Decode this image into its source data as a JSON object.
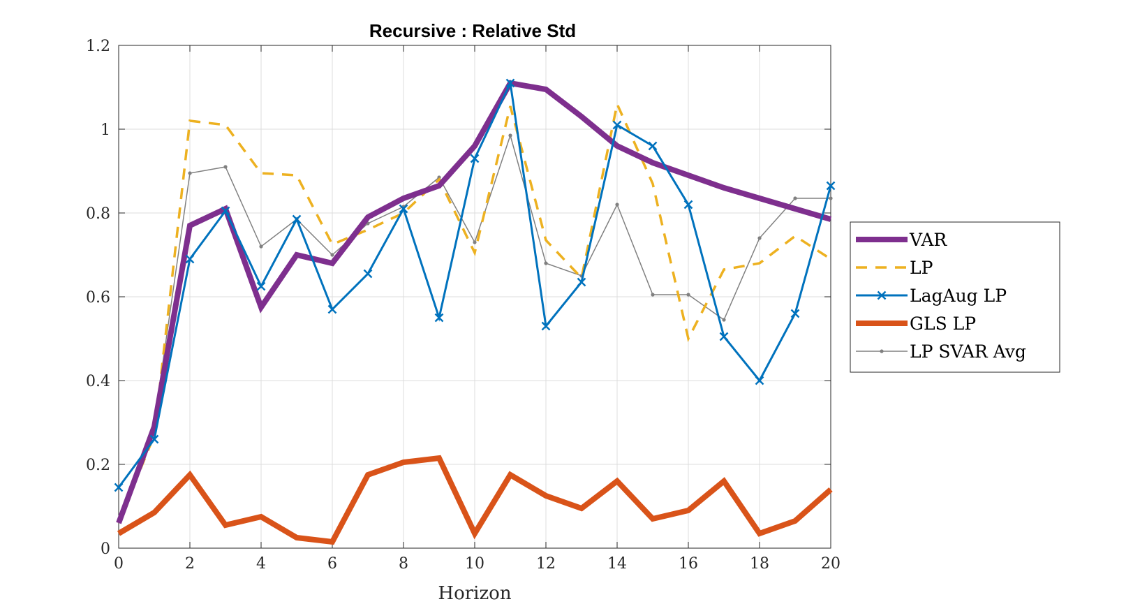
{
  "chart_data": {
    "type": "line",
    "title": "Recursive : Relative Std",
    "xlabel": "Horizon",
    "ylabel": "",
    "xlim": [
      0,
      20
    ],
    "ylim": [
      0,
      1.2
    ],
    "xticks": [
      0,
      2,
      4,
      6,
      8,
      10,
      12,
      14,
      16,
      18,
      20
    ],
    "yticks": [
      0,
      0.2,
      0.4,
      0.6,
      0.8,
      1,
      1.2
    ],
    "ytick_labels": [
      "0",
      "0.2",
      "0.4",
      "0.6",
      "0.8",
      "1",
      "1.2"
    ],
    "grid": true,
    "legend_position": "right-outside",
    "x": [
      0,
      1,
      2,
      3,
      4,
      5,
      6,
      7,
      8,
      9,
      10,
      11,
      12,
      13,
      14,
      15,
      16,
      17,
      18,
      19,
      20
    ],
    "series": [
      {
        "name": "VAR",
        "color": "#7E2F8E",
        "style": "solid-thick",
        "values": [
          0.06,
          0.29,
          0.77,
          0.81,
          0.575,
          0.7,
          0.68,
          0.79,
          0.835,
          0.865,
          0.96,
          1.11,
          1.095,
          1.03,
          0.96,
          0.92,
          0.89,
          0.86,
          0.835,
          0.81,
          0.785
        ]
      },
      {
        "name": "LP",
        "color": "#EDB120",
        "style": "dashed",
        "values": [
          0.06,
          0.27,
          1.02,
          1.01,
          0.895,
          0.89,
          0.725,
          0.76,
          0.8,
          0.88,
          0.705,
          1.055,
          0.735,
          0.645,
          1.06,
          0.87,
          0.5,
          0.665,
          0.68,
          0.745,
          0.69
        ]
      },
      {
        "name": "LagAug LP",
        "color": "#0072BD",
        "style": "solid-x",
        "values": [
          0.145,
          0.26,
          0.69,
          0.805,
          0.625,
          0.785,
          0.57,
          0.655,
          0.81,
          0.55,
          0.93,
          1.11,
          0.53,
          0.635,
          1.01,
          0.96,
          0.82,
          0.505,
          0.4,
          0.56,
          0.865
        ]
      },
      {
        "name": "GLS LP",
        "color": "#D95319",
        "style": "solid-thick",
        "values": [
          0.035,
          0.085,
          0.175,
          0.055,
          0.075,
          0.025,
          0.015,
          0.175,
          0.205,
          0.215,
          0.035,
          0.175,
          0.125,
          0.095,
          0.16,
          0.07,
          0.09,
          0.16,
          0.035,
          0.065,
          0.14
        ]
      },
      {
        "name": "LP SVAR Avg",
        "color": "#808080",
        "style": "thin-dot",
        "values": [
          0.065,
          0.3,
          0.895,
          0.91,
          0.72,
          0.785,
          0.7,
          0.775,
          0.815,
          0.885,
          0.73,
          0.985,
          0.68,
          0.65,
          0.82,
          0.605,
          0.605,
          0.545,
          0.74,
          0.835,
          0.835
        ]
      }
    ]
  }
}
